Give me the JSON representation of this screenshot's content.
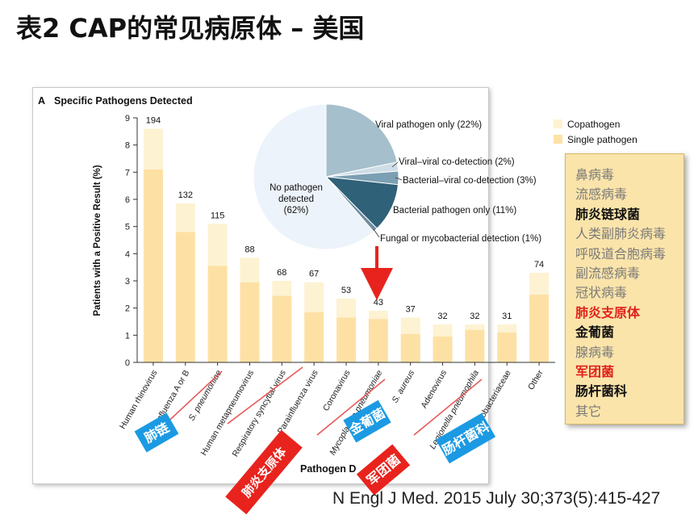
{
  "slide": {
    "title": "表2 CAP的常见病原体 – 美国",
    "citation": "N Engl J Med. 2015 July 30;373(5):415-427"
  },
  "colors": {
    "single": "#fde1a4",
    "copathogen": "#fdf2d2",
    "no_pathogen": "#edf3fa",
    "viral_only": "#a6bfcc",
    "viral_viral": "#cfdde6",
    "bacterial_viral": "#7b9fb3",
    "bacterial_only": "#2f6179",
    "fungal": "#6f8d9f",
    "annotation_red": "#e8231d",
    "annotation_blue": "#1b9ae3"
  },
  "chart_data": [
    {
      "type": "bar",
      "panel_label": "A",
      "title": "Specific Pathogens Detected",
      "xlabel": "Pathogen D",
      "ylabel": "Patients with a Positive Result (%)",
      "ylim": [
        0,
        9
      ],
      "yticks": [
        0,
        1,
        2,
        3,
        4,
        5,
        6,
        7,
        8,
        9
      ],
      "grid": false,
      "legend_position": "top-right",
      "categories": [
        "Human rhinovirus",
        "Influenza A or B",
        "S. pneumoniae",
        "Human metapneumovirus",
        "Respiratory syncytial virus",
        "Parainfluenza virus",
        "Coronavirus",
        "Mycoplasma pneumoniae",
        "S. aureus",
        "Adenovirus",
        "Legionella pneumophila",
        "Enterobacteriaceae",
        "Other"
      ],
      "italic_categories": [
        false,
        false,
        true,
        false,
        false,
        false,
        false,
        true,
        true,
        false,
        true,
        false,
        false
      ],
      "bar_labels": [
        "194",
        "132",
        "115",
        "88",
        "68",
        "67",
        "53",
        "43",
        "37",
        "32",
        "32",
        "31",
        "74"
      ],
      "series": [
        {
          "name": "Single pathogen",
          "values": [
            7.1,
            4.8,
            3.55,
            2.95,
            2.45,
            1.85,
            1.65,
            1.6,
            1.05,
            0.95,
            1.2,
            1.1,
            2.5
          ]
        },
        {
          "name": "Copathogen",
          "values": [
            1.5,
            1.05,
            1.55,
            0.9,
            0.55,
            1.1,
            0.7,
            0.3,
            0.6,
            0.45,
            0.2,
            0.3,
            0.8
          ]
        }
      ]
    },
    {
      "type": "pie",
      "labels": [
        "No pathogen detected (62%)",
        "Viral pathogen only (22%)",
        "Viral–viral co-detection (2%)",
        "Bacterial–viral co-detection (3%)",
        "Bacterial pathogen only (11%)",
        "Fungal or mycobacterial detection (1%)"
      ],
      "values": [
        62,
        22,
        2,
        3,
        11,
        1
      ]
    }
  ],
  "pie_labels": {
    "no_pathogen_line1": "No pathogen",
    "no_pathogen_line2": "detected",
    "no_pathogen_line3": "(62%)",
    "viral_only": "Viral pathogen only (22%)",
    "viral_viral": "Viral–viral co-detection (2%)",
    "bacterial_viral": "Bacterial–viral co-detection (3%)",
    "bacterial_only": "Bacterial pathogen only (11%)",
    "fungal": "Fungal or mycobacterial detection (1%)"
  },
  "annotations": {
    "blue_tags": [
      "肺链",
      "金葡菌",
      "肠杆菌科"
    ],
    "red_tags": [
      "肺炎支原体",
      "军团菌"
    ]
  },
  "pathogen_list": [
    {
      "text": "鼻病毒",
      "style": "gray"
    },
    {
      "text": "流感病毒",
      "style": "gray"
    },
    {
      "text": "肺炎链球菌",
      "style": "bold"
    },
    {
      "text": "人类副肺炎病毒",
      "style": "gray"
    },
    {
      "text": "呼吸道合胞病毒",
      "style": "gray"
    },
    {
      "text": "副流感病毒",
      "style": "gray"
    },
    {
      "text": "冠状病毒",
      "style": "gray"
    },
    {
      "text": "肺炎支原体",
      "style": "red"
    },
    {
      "text": "金葡菌",
      "style": "bold"
    },
    {
      "text": "腺病毒",
      "style": "gray"
    },
    {
      "text": "军团菌",
      "style": "red"
    },
    {
      "text": "肠杆菌科",
      "style": "bold"
    },
    {
      "text": "其它",
      "style": "gray"
    }
  ]
}
